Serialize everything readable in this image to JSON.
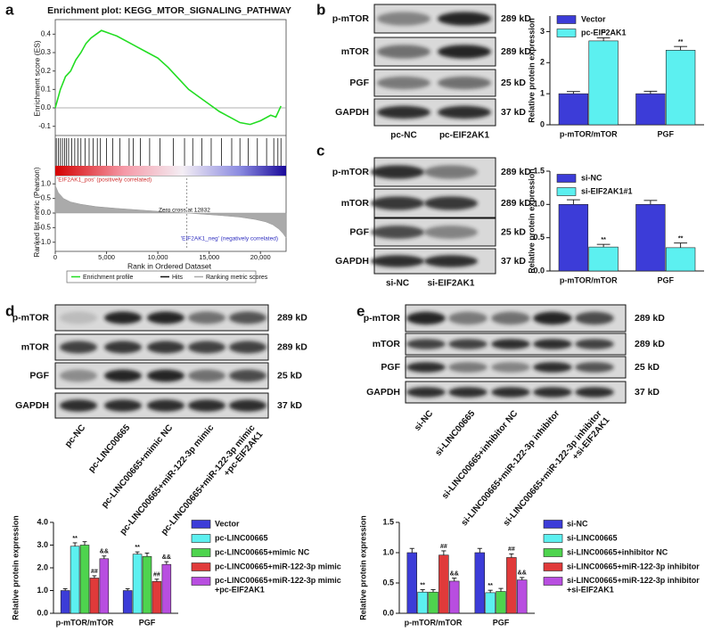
{
  "panel_labels": [
    "a",
    "b",
    "c",
    "d",
    "e"
  ],
  "chart_data": [
    {
      "type": "gsea",
      "title": "Enrichment plot: KEGG_MTOR_SIGNALING_PATHWAY",
      "ylabel": "Enrichment score (ES)",
      "xlabel": "Rank in Ordered Dataset",
      "color": "#22dd22",
      "x": [
        0,
        500,
        1000,
        1500,
        2000,
        2500,
        3000,
        3500,
        4000,
        4500,
        5000,
        6000,
        7000,
        8000,
        9000,
        10000,
        11000,
        12000,
        13000,
        14000,
        15000,
        16000,
        17000,
        18000,
        19000,
        20000,
        21000,
        21500,
        22000
      ],
      "values": [
        0,
        0.1,
        0.17,
        0.2,
        0.26,
        0.3,
        0.35,
        0.38,
        0.4,
        0.42,
        0.41,
        0.39,
        0.36,
        0.33,
        0.3,
        0.27,
        0.22,
        0.16,
        0.1,
        0.06,
        0.02,
        -0.02,
        -0.05,
        -0.08,
        -0.09,
        -0.07,
        -0.04,
        -0.05,
        0.01
      ],
      "xlim": [
        0,
        22500
      ],
      "ylim": [
        -0.15,
        0.45
      ],
      "yticks": [
        -0.1,
        {
          "value": 0,
          "label": "0.0"
        },
        0.1,
        0.2,
        0.3,
        0.4
      ],
      "xticks": [
        0,
        {
          "value": 5000,
          "label": "5,000"
        },
        {
          "value": 10000,
          "label": "10,000"
        },
        {
          "value": 15000,
          "label": "15,000"
        },
        {
          "value": 20000,
          "label": "20,000"
        }
      ],
      "hits": [
        100,
        300,
        500,
        700,
        900,
        1100,
        1300,
        1600,
        1900,
        2200,
        2500,
        2900,
        3300,
        3700,
        4100,
        4400,
        5000,
        5600,
        6300,
        7200,
        7600,
        8300,
        9200,
        10200,
        11500,
        12600,
        13400,
        14300,
        15200,
        16200,
        17200,
        18000,
        18800,
        19700,
        20600,
        21300,
        21700,
        22000
      ],
      "metric": {
        "ylabel": "Ranked list metric (Pearson)",
        "color": "#aaaaaa",
        "x": [
          0,
          300,
          800,
          1500,
          2500,
          4000,
          6000,
          8000,
          10000,
          12000,
          12832,
          14000,
          16000,
          18000,
          19500,
          20500,
          21200,
          21800,
          22200,
          22500
        ],
        "values": [
          0.95,
          0.7,
          0.5,
          0.38,
          0.3,
          0.22,
          0.16,
          0.11,
          0.06,
          0.02,
          0,
          -0.03,
          -0.08,
          -0.14,
          -0.22,
          -0.3,
          -0.4,
          -0.55,
          -0.7,
          -0.85
        ],
        "ylim": [
          -1.1,
          1.1
        ],
        "yticks": [
          {
            "value": -1,
            "label": "-1.0"
          },
          -0.5,
          {
            "value": 0,
            "label": "0.0"
          },
          0.5,
          {
            "value": 1,
            "label": "1.0"
          }
        ]
      },
      "annotations": [
        "'EIF2AK1_pos' (positively correlated)",
        "Zero cross at 12832",
        "'EIF2AK1_neg' (negatively correlated)"
      ],
      "legend": [
        "Enrichment profile",
        "Hits",
        "Ranking metric scores"
      ]
    },
    {
      "type": "bar",
      "ylabel": "Relative protein expression",
      "categories": [
        "p-mTOR/mTOR",
        "PGF"
      ],
      "ylim": [
        0,
        3.5
      ],
      "yticks": [
        0,
        1,
        2,
        3
      ],
      "series": [
        {
          "name": "Vector",
          "color": "#3c3cd8",
          "values": [
            1.0,
            1.0
          ],
          "errors": [
            0.07,
            0.08
          ],
          "marks": [
            null,
            null
          ]
        },
        {
          "name": "pc-EIF2AK1",
          "color": "#5cf0f0",
          "values": [
            2.7,
            2.4
          ],
          "errors": [
            0.1,
            0.12
          ],
          "marks": [
            "**",
            "**"
          ]
        }
      ]
    },
    {
      "type": "bar",
      "ylabel": "Relative protein expression",
      "categories": [
        "p-mTOR/mTOR",
        "PGF"
      ],
      "ylim": [
        0,
        1.5
      ],
      "yticks": [
        {
          "value": 0,
          "label": "0.0"
        },
        0.5,
        {
          "value": 1,
          "label": "1.0"
        },
        1.5
      ],
      "series": [
        {
          "name": "si-NC",
          "color": "#3c3cd8",
          "values": [
            1.0,
            1.0
          ],
          "errors": [
            0.07,
            0.06
          ],
          "marks": [
            null,
            null
          ]
        },
        {
          "name": "si-EIF2AK1#1",
          "color": "#5cf0f0",
          "values": [
            0.36,
            0.35
          ],
          "errors": [
            0.04,
            0.07
          ],
          "marks": [
            "**",
            "**"
          ]
        }
      ]
    },
    {
      "type": "bar",
      "ylabel": "Relative protein expression",
      "categories": [
        "p-mTOR/mTOR",
        "PGF"
      ],
      "ylim": [
        0,
        4
      ],
      "yticks": [
        {
          "value": 0,
          "label": "0.0"
        },
        {
          "value": 1,
          "label": "1.0"
        },
        {
          "value": 2,
          "label": "2.0"
        },
        {
          "value": 3,
          "label": "3.0"
        },
        {
          "value": 4,
          "label": "4.0"
        }
      ],
      "series": [
        {
          "name": "Vector",
          "color": "#3c3cd8",
          "values": [
            1.0,
            1.0
          ],
          "errors": [
            0.08,
            0.08
          ],
          "marks": [
            null,
            null
          ]
        },
        {
          "name": "pc-LINC00665",
          "color": "#5cf0f0",
          "values": [
            2.95,
            2.6
          ],
          "errors": [
            0.15,
            0.1
          ],
          "marks": [
            "**",
            "**"
          ]
        },
        {
          "name": "pc-LINC00665+mimic NC",
          "color": "#4ed44e",
          "values": [
            3.0,
            2.5
          ],
          "errors": [
            0.15,
            0.15
          ],
          "marks": [
            null,
            null
          ]
        },
        {
          "name": "pc-LINC00665+miR-122-3p mimic",
          "color": "#e03a3a",
          "values": [
            1.55,
            1.4
          ],
          "errors": [
            0.1,
            0.1
          ],
          "marks": [
            "##",
            "##"
          ]
        },
        {
          "name": "pc-LINC00665+miR-122-3p mimic\n+pc-EIF2AK1",
          "color": "#b84ee0",
          "values": [
            2.4,
            2.15
          ],
          "errors": [
            0.12,
            0.12
          ],
          "marks": [
            "&&",
            "&&"
          ]
        }
      ]
    },
    {
      "type": "bar",
      "ylabel": "Relative protein expression",
      "categories": [
        "p-mTOR/mTOR",
        "PGF"
      ],
      "ylim": [
        0,
        1.5
      ],
      "yticks": [
        {
          "value": 0,
          "label": "0.0"
        },
        0.5,
        {
          "value": 1,
          "label": "1.0"
        },
        1.5
      ],
      "series": [
        {
          "name": "si-NC",
          "color": "#3c3cd8",
          "values": [
            1.0,
            1.0
          ],
          "errors": [
            0.07,
            0.07
          ],
          "marks": [
            null,
            null
          ]
        },
        {
          "name": "si-LINC00665",
          "color": "#5cf0f0",
          "values": [
            0.35,
            0.34
          ],
          "errors": [
            0.04,
            0.04
          ],
          "marks": [
            "**",
            "**"
          ]
        },
        {
          "name": "si-LINC00665+inhibitor NC",
          "color": "#4ed44e",
          "values": [
            0.35,
            0.36
          ],
          "errors": [
            0.04,
            0.05
          ],
          "marks": [
            null,
            null
          ]
        },
        {
          "name": "si-LINC00665+miR-122-3p inhibitor",
          "color": "#e03a3a",
          "values": [
            0.96,
            0.92
          ],
          "errors": [
            0.07,
            0.06
          ],
          "marks": [
            "##",
            "##"
          ]
        },
        {
          "name": "si-LINC00665+miR-122-3p inhibitor\n+si-EIF2AK1",
          "color": "#b84ee0",
          "values": [
            0.53,
            0.55
          ],
          "errors": [
            0.05,
            0.04
          ],
          "marks": [
            "&&",
            "&&"
          ]
        }
      ]
    }
  ],
  "blots": [
    {
      "rows": [
        "p-mTOR",
        "mTOR",
        "PGF",
        "GAPDH"
      ],
      "sizes": [
        "289 kD",
        "289 kD",
        "25 kD",
        "37 kD"
      ],
      "lanes": [
        "pc-NC",
        "pc-EIF2AK1"
      ]
    },
    {
      "rows": [
        "p-mTOR",
        "mTOR",
        "PGF",
        "GAPDH"
      ],
      "sizes": [
        "289 kD",
        "289 kD",
        "25 kD",
        "37 kD"
      ],
      "lanes": [
        "si-NC",
        "si-EIF2AK1"
      ]
    },
    {
      "rows": [
        "p-mTOR",
        "mTOR",
        "PGF",
        "GAPDH"
      ],
      "sizes": [
        "289 kD",
        "289 kD",
        "25 kD",
        "37 kD"
      ],
      "lanes": [
        "pc-NC",
        "pc-LINC00665",
        "pc-LINC00665+mimic NC",
        "pc-LINC00665+miR-122-3p mimic",
        "pc-LINC00665+miR-122-3p mimic\n+pc-EIF2AK1"
      ]
    },
    {
      "rows": [
        "p-mTOR",
        "mTOR",
        "PGF",
        "GAPDH"
      ],
      "sizes": [
        "289 kD",
        "289 kD",
        "25 kD",
        "37 kD"
      ],
      "lanes": [
        "si-NC",
        "si-LINC00665",
        "si-LINC00665+inhibitor NC",
        "si-LINC00665+miR-122-3p inhibitor",
        "si-LINC00665+miR-122-3p inhibitor\n+si-EIF2AK1"
      ]
    }
  ]
}
